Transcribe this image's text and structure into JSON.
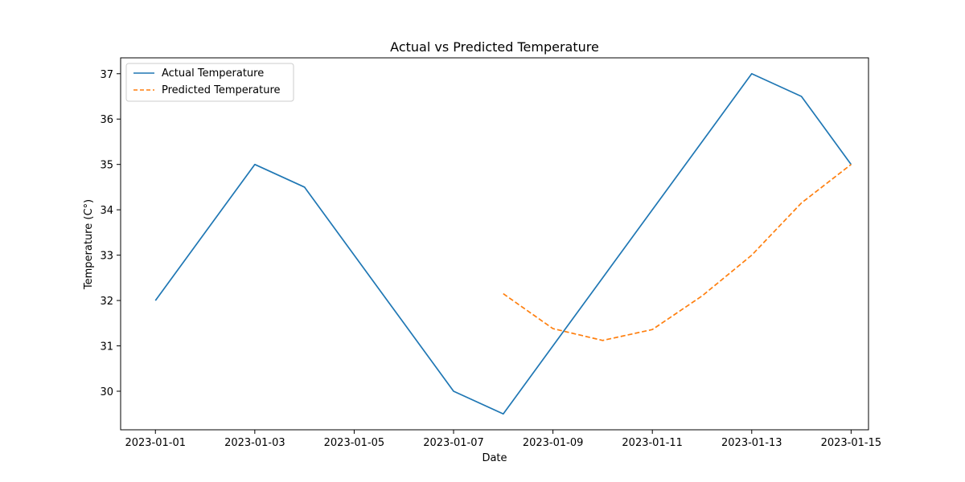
{
  "chart_data": {
    "type": "line",
    "title": "Actual vs Predicted Temperature",
    "xlabel": "Date",
    "ylabel": "Temperature (C°)",
    "x_ticks": [
      "2023-01-01",
      "2023-01-03",
      "2023-01-05",
      "2023-01-07",
      "2023-01-09",
      "2023-01-11",
      "2023-01-13",
      "2023-01-15"
    ],
    "y_ticks": [
      30,
      31,
      32,
      33,
      34,
      35,
      36,
      37
    ],
    "ylim": [
      29.15,
      37.35
    ],
    "xlim": [
      "2022-12-31",
      "2023-01-15"
    ],
    "grid": false,
    "legend_position": "upper-left",
    "series": [
      {
        "name": "Actual Temperature",
        "color": "#1f77b4",
        "style": "solid",
        "x": [
          "2023-01-01",
          "2023-01-02",
          "2023-01-03",
          "2023-01-04",
          "2023-01-05",
          "2023-01-06",
          "2023-01-07",
          "2023-01-08",
          "2023-01-09",
          "2023-01-10",
          "2023-01-11",
          "2023-01-12",
          "2023-01-13",
          "2023-01-14",
          "2023-01-15"
        ],
        "y": [
          32.0,
          33.5,
          35.0,
          34.5,
          33.0,
          31.5,
          30.0,
          29.5,
          31.0,
          32.5,
          34.0,
          35.5,
          37.0,
          36.5,
          35.0
        ]
      },
      {
        "name": "Predicted Temperature",
        "color": "#ff7f0e",
        "style": "dashed",
        "x": [
          "2023-01-08",
          "2023-01-09",
          "2023-01-10",
          "2023-01-11",
          "2023-01-12",
          "2023-01-13",
          "2023-01-14",
          "2023-01-15"
        ],
        "y": [
          32.15,
          31.38,
          31.12,
          31.36,
          32.1,
          33.0,
          34.15,
          35.0
        ]
      }
    ]
  }
}
